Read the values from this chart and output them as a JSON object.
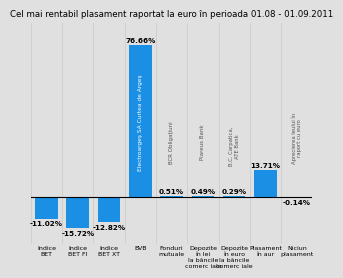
{
  "title": "Cel mai rentabil plasament raportat la euro în perioada 01.08 - 01.09.2011",
  "values": [
    -11.02,
    -15.72,
    -12.82,
    76.66,
    0.51,
    0.49,
    0.29,
    13.71,
    -0.14
  ],
  "value_labels": [
    "-11.02%",
    "-15.72%",
    "-12.82%",
    "76.66%",
    "0.51%",
    "0.49%",
    "0.29%",
    "13.71%",
    "-0.14%"
  ],
  "x_labels": [
    "Indice\nBET",
    "Indice\nBET FI",
    "Indice\nBET XT",
    "BVB",
    "Fonduri\nmutuale",
    "Depozite\nîn lei\nla băncile\ncomerc iale",
    "Depozite\nîn euro\nla băncile\ncomerc iale",
    "Plasament\nîn aur",
    "Niciun\nplasament"
  ],
  "rotated_labels": [
    "",
    "",
    "",
    "Electroargeş SA Curtea de Argeş",
    "BCR Obligaţiuni",
    "Piareus Bank",
    "B.C. Carpatica,\nATE Bank",
    "",
    "Aprecierea leului în\nraport cu euro"
  ],
  "bar_color": "#1a8fe3",
  "background_color": "#e0e0e0",
  "grid_color": "#c8c8c8",
  "title_fontsize": 6.2,
  "label_fontsize": 4.5,
  "value_fontsize": 5.2,
  "ylim_min": -24,
  "ylim_max": 88
}
